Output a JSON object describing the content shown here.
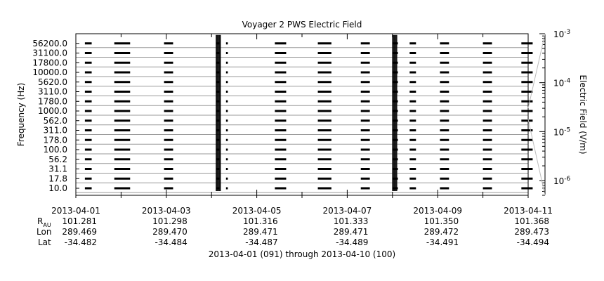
{
  "chart_data": {
    "type": "line",
    "title": "Voyager 2 PWS Electric Field",
    "ylabel": "Frequency (Hz)",
    "y2label": "Electric Field (V/m)",
    "xlabel": "2013-04-01 (091) through 2013-04-10 (100)",
    "frequency_channels": [
      "10.0",
      "17.8",
      "31.1",
      "56.2",
      "100.0",
      "178.0",
      "311.0",
      "562.0",
      "1000.0",
      "1780.0",
      "3110.0",
      "5620.0",
      "10000.0",
      "17800.0",
      "31100.0",
      "56200.0"
    ],
    "y2_ticks": [
      "10^-6",
      "10^-5",
      "10^-4",
      "10^-3"
    ],
    "y2_range": [
      5e-07,
      0.001
    ],
    "y2_scale": "log",
    "x_range": [
      "2013-04-01",
      "2013-04-11"
    ],
    "x_ticks": [
      "2013-04-01",
      "2013-04-03",
      "2013-04-05",
      "2013-04-07",
      "2013-04-09",
      "2013-04-11"
    ],
    "ephemeris_labels": {
      "r": "R",
      "r_sub": "AU",
      "lon": "Lon",
      "lat": "Lat"
    },
    "ephemeris": {
      "R": [
        "101.281",
        "101.298",
        "101.316",
        "101.333",
        "101.350",
        "101.368"
      ],
      "Lon": [
        "289.469",
        "289.470",
        "289.471",
        "289.471",
        "289.472",
        "289.473"
      ],
      "Lat": [
        "-34.482",
        "-34.484",
        "-34.487",
        "-34.489",
        "-34.491",
        "-34.494"
      ]
    },
    "observation_blocks_days": [
      [
        0.2,
        0.35
      ],
      [
        0.85,
        1.2
      ],
      [
        1.95,
        2.15
      ],
      [
        3.1,
        3.18
      ],
      [
        3.32,
        3.36
      ],
      [
        4.4,
        4.65
      ],
      [
        5.35,
        5.65
      ],
      [
        6.3,
        6.5
      ],
      [
        7.0,
        7.12
      ],
      [
        7.38,
        7.52
      ],
      [
        8.05,
        8.25
      ],
      [
        9.0,
        9.2
      ],
      [
        9.85,
        10.1
      ]
    ],
    "bursts_days": [
      3.1,
      7.0
    ],
    "grid": true
  }
}
